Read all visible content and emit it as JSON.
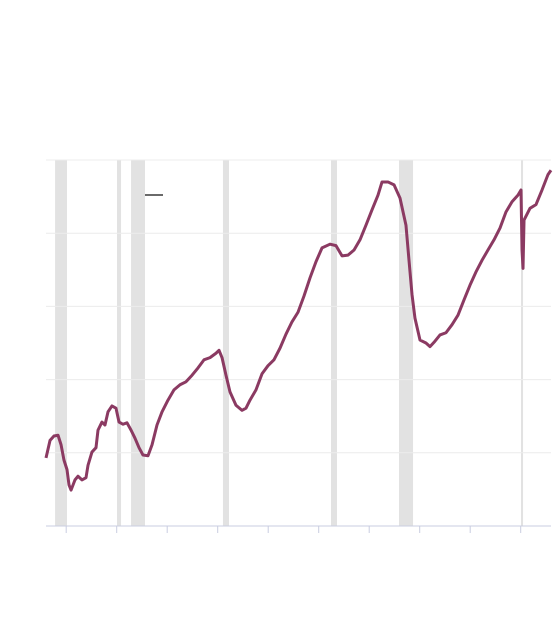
{
  "chart_data": {
    "type": "line",
    "x": [
      0,
      0.4,
      0.79,
      1.19,
      1.49,
      1.78,
      2.08,
      2.28,
      2.48,
      2.87,
      3.17,
      3.56,
      3.96,
      4.16,
      4.55,
      4.95,
      5.15,
      5.54,
      5.84,
      6.14,
      6.53,
      6.93,
      7.23,
      7.62,
      8.02,
      8.42,
      8.81,
      9.21,
      9.6,
      10.1,
      10.5,
      10.99,
      11.49,
      12.08,
      12.67,
      13.27,
      13.86,
      14.46,
      15.05,
      15.64,
      16.24,
      16.83,
      17.13,
      17.43,
      17.82,
      18.22,
      18.81,
      19.41,
      19.8,
      20.2,
      20.79,
      21.39,
      21.98,
      22.57,
      23.17,
      23.76,
      24.36,
      24.95,
      25.54,
      26.14,
      26.73,
      27.33,
      28.12,
      28.71,
      29.31,
      29.9,
      30.5,
      31.09,
      31.68,
      32.28,
      32.87,
      33.27,
      33.86,
      34.46,
      35.05,
      35.64,
      35.94,
      36.24,
      36.53,
      37.03,
      37.62,
      38.02,
      38.42,
      39.01,
      39.6,
      40.2,
      40.79,
      41.39,
      41.98,
      42.57,
      43.17,
      43.76,
      44.36,
      44.95,
      45.54,
      46.14,
      46.73,
      47.03,
      47.13,
      47.23,
      47.33,
      47.92,
      48.51,
      49.11,
      49.7,
      50
    ],
    "values": [
      0.93,
      1.17,
      1.23,
      1.24,
      1.11,
      0.9,
      0.77,
      0.56,
      0.49,
      0.63,
      0.68,
      0.63,
      0.66,
      0.83,
      1.01,
      1.07,
      1.31,
      1.42,
      1.38,
      1.56,
      1.64,
      1.61,
      1.42,
      1.39,
      1.41,
      1.31,
      1.2,
      1.07,
      0.97,
      0.96,
      1.11,
      1.38,
      1.56,
      1.72,
      1.86,
      1.93,
      1.97,
      2.06,
      2.16,
      2.27,
      2.3,
      2.36,
      2.4,
      2.3,
      2.06,
      1.83,
      1.65,
      1.58,
      1.61,
      1.72,
      1.86,
      2.08,
      2.19,
      2.27,
      2.43,
      2.62,
      2.79,
      2.92,
      3.14,
      3.39,
      3.61,
      3.8,
      3.85,
      3.83,
      3.69,
      3.7,
      3.77,
      3.91,
      4.11,
      4.32,
      4.52,
      4.7,
      4.7,
      4.66,
      4.48,
      4.11,
      3.63,
      3.16,
      2.84,
      2.54,
      2.5,
      2.45,
      2.51,
      2.61,
      2.64,
      2.75,
      2.88,
      3.09,
      3.29,
      3.47,
      3.63,
      3.77,
      3.91,
      4.07,
      4.29,
      4.43,
      4.52,
      4.59,
      3.77,
      3.52,
      4.18,
      4.34,
      4.39,
      4.59,
      4.8,
      4.86
    ],
    "color": "#8b3a62",
    "recessions": [
      [
        0.9,
        2.08
      ],
      [
        7.03,
        7.43
      ],
      [
        8.42,
        9.8
      ],
      [
        17.52,
        18.12
      ],
      [
        28.22,
        28.81
      ],
      [
        34.95,
        36.34
      ],
      [
        47.03,
        47.23
      ]
    ],
    "recession_color": "#e2e2e2",
    "xlim": [
      0,
      50
    ],
    "xticks": [
      2,
      7,
      12,
      17,
      22,
      27,
      32,
      37,
      42,
      47
    ],
    "ylim": [
      0,
      5
    ],
    "yticks": [
      0,
      1,
      2,
      3,
      4,
      5
    ],
    "grid": true
  }
}
